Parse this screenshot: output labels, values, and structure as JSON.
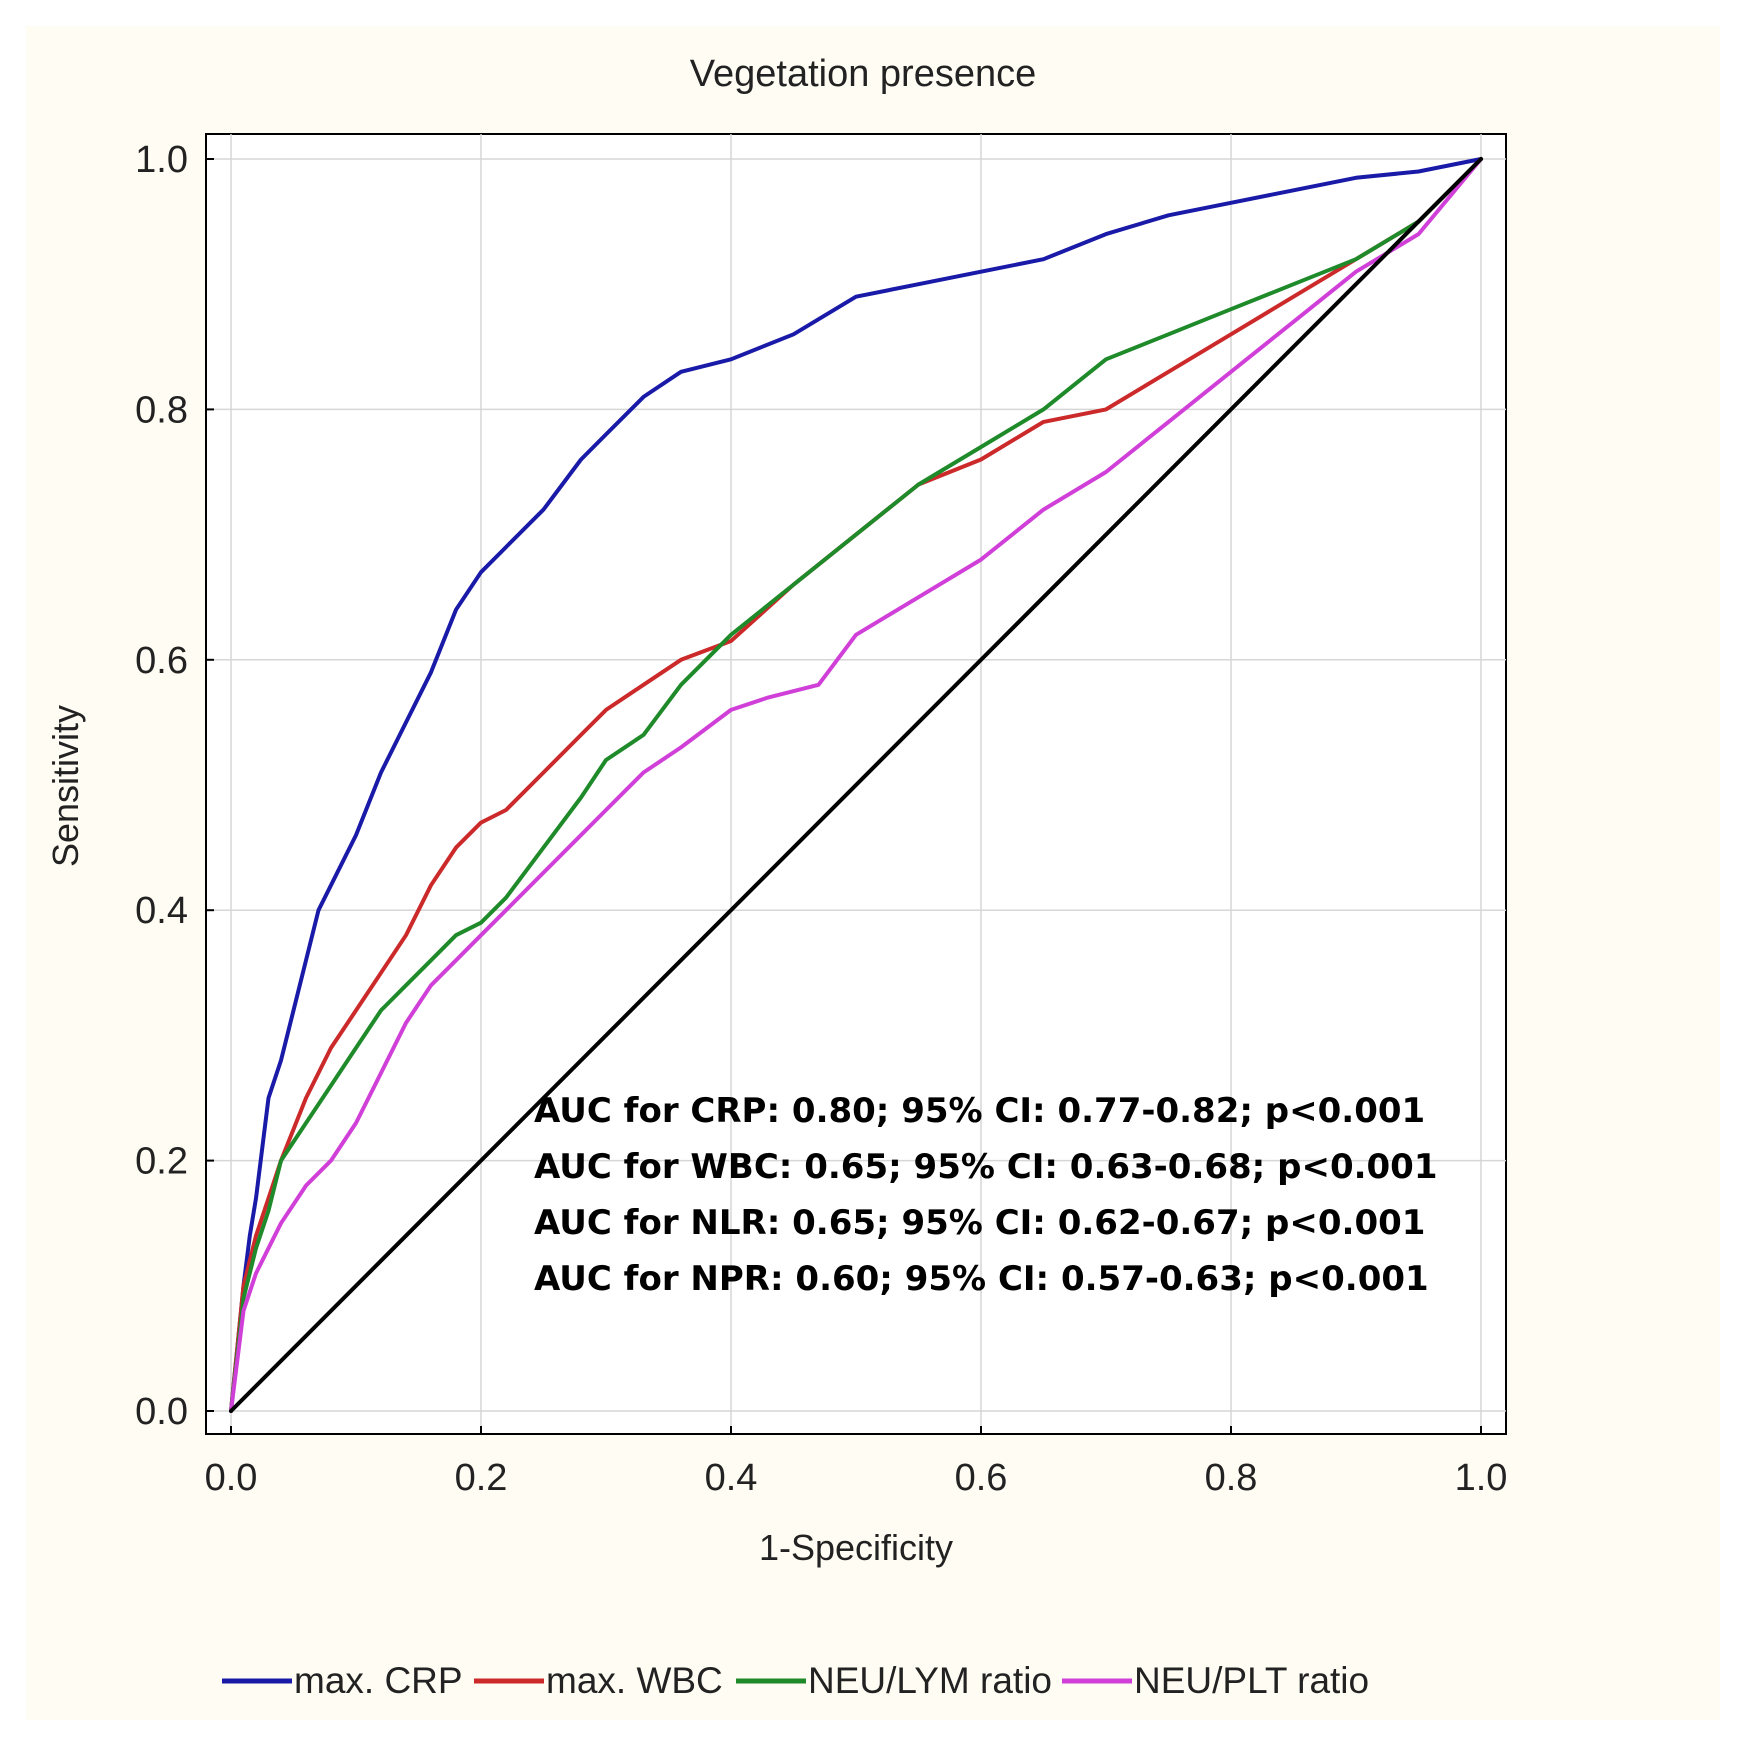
{
  "chart_data": {
    "type": "line",
    "title": "Vegetation presence",
    "xlabel": "1-Specificity",
    "ylabel": "Sensitivity",
    "xlim": [
      0,
      1
    ],
    "ylim": [
      0,
      1
    ],
    "xticks": [
      "0.0",
      "0.2",
      "0.4",
      "0.6",
      "0.8",
      "1.0"
    ],
    "yticks": [
      "0.0",
      "0.2",
      "0.4",
      "0.6",
      "0.8",
      "1.0"
    ],
    "grid": true,
    "legend_position": "bottom",
    "series": [
      {
        "name": "max. CRP",
        "color": "#1a1aa8",
        "x": [
          0,
          0.005,
          0.01,
          0.015,
          0.02,
          0.03,
          0.04,
          0.05,
          0.06,
          0.07,
          0.08,
          0.1,
          0.12,
          0.14,
          0.16,
          0.18,
          0.2,
          0.22,
          0.25,
          0.28,
          0.3,
          0.33,
          0.36,
          0.4,
          0.45,
          0.5,
          0.55,
          0.6,
          0.65,
          0.7,
          0.75,
          0.8,
          0.85,
          0.9,
          0.95,
          1.0
        ],
        "y": [
          0,
          0.05,
          0.1,
          0.14,
          0.17,
          0.25,
          0.28,
          0.32,
          0.36,
          0.4,
          0.42,
          0.46,
          0.51,
          0.55,
          0.59,
          0.64,
          0.67,
          0.69,
          0.72,
          0.76,
          0.78,
          0.81,
          0.83,
          0.84,
          0.86,
          0.89,
          0.9,
          0.91,
          0.92,
          0.94,
          0.955,
          0.965,
          0.975,
          0.985,
          0.99,
          1.0
        ]
      },
      {
        "name": "max. WBC",
        "color": "#cc2a2a",
        "x": [
          0,
          0.01,
          0.02,
          0.03,
          0.04,
          0.06,
          0.08,
          0.1,
          0.12,
          0.14,
          0.16,
          0.18,
          0.2,
          0.22,
          0.25,
          0.28,
          0.3,
          0.33,
          0.36,
          0.4,
          0.45,
          0.5,
          0.55,
          0.6,
          0.65,
          0.7,
          0.75,
          0.8,
          0.85,
          0.9,
          0.95,
          1.0
        ],
        "y": [
          0,
          0.1,
          0.14,
          0.17,
          0.2,
          0.25,
          0.29,
          0.32,
          0.35,
          0.38,
          0.42,
          0.45,
          0.47,
          0.48,
          0.51,
          0.54,
          0.56,
          0.58,
          0.6,
          0.615,
          0.66,
          0.7,
          0.74,
          0.76,
          0.79,
          0.8,
          0.83,
          0.86,
          0.89,
          0.92,
          0.95,
          1.0
        ]
      },
      {
        "name": "NEU/LYM ratio",
        "color": "#1f8a2a",
        "x": [
          0,
          0.01,
          0.02,
          0.03,
          0.04,
          0.06,
          0.08,
          0.1,
          0.12,
          0.14,
          0.16,
          0.18,
          0.2,
          0.22,
          0.25,
          0.28,
          0.3,
          0.33,
          0.36,
          0.4,
          0.45,
          0.5,
          0.55,
          0.6,
          0.65,
          0.7,
          0.75,
          0.8,
          0.85,
          0.9,
          0.95,
          1.0
        ],
        "y": [
          0,
          0.09,
          0.13,
          0.16,
          0.2,
          0.23,
          0.26,
          0.29,
          0.32,
          0.34,
          0.36,
          0.38,
          0.39,
          0.41,
          0.45,
          0.49,
          0.52,
          0.54,
          0.58,
          0.62,
          0.66,
          0.7,
          0.74,
          0.77,
          0.8,
          0.84,
          0.86,
          0.88,
          0.9,
          0.92,
          0.95,
          1.0
        ]
      },
      {
        "name": "NEU/PLT ratio",
        "color": "#d040d8",
        "x": [
          0,
          0.01,
          0.02,
          0.03,
          0.04,
          0.06,
          0.08,
          0.1,
          0.12,
          0.14,
          0.16,
          0.18,
          0.2,
          0.22,
          0.25,
          0.28,
          0.3,
          0.33,
          0.36,
          0.4,
          0.43,
          0.47,
          0.5,
          0.55,
          0.6,
          0.65,
          0.7,
          0.75,
          0.8,
          0.85,
          0.9,
          0.95,
          1.0
        ],
        "y": [
          0,
          0.08,
          0.11,
          0.13,
          0.15,
          0.18,
          0.2,
          0.23,
          0.27,
          0.31,
          0.34,
          0.36,
          0.38,
          0.4,
          0.43,
          0.46,
          0.48,
          0.51,
          0.53,
          0.56,
          0.57,
          0.58,
          0.62,
          0.65,
          0.68,
          0.72,
          0.75,
          0.79,
          0.83,
          0.87,
          0.91,
          0.94,
          1.0
        ]
      },
      {
        "name": "",
        "color": "#000000",
        "x": [
          0,
          1
        ],
        "y": [
          0,
          1
        ]
      }
    ],
    "annotations": [
      "AUC for CRP: 0.80; 95% CI: 0.77-0.82; p<0.001",
      "AUC for WBC: 0.65; 95% CI: 0.63-0.68; p<0.001",
      "AUC for NLR: 0.65; 95% CI: 0.62-0.67; p<0.001",
      "AUC for NPR: 0.60; 95% CI: 0.57-0.63; p<0.001"
    ]
  }
}
